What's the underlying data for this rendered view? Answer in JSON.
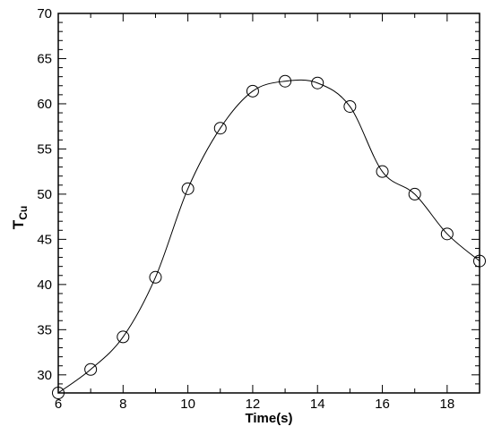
{
  "chart_data": {
    "type": "line",
    "title": "",
    "xlabel": "Time(s)",
    "ylabel_main": "T",
    "ylabel_sub": "Cu",
    "xlim": [
      6,
      19
    ],
    "ylim": [
      28,
      70
    ],
    "xticks": [
      6,
      8,
      10,
      12,
      14,
      16,
      18
    ],
    "yticks": [
      30,
      35,
      40,
      45,
      50,
      55,
      60,
      65,
      70
    ],
    "grid": false,
    "legend": "none",
    "series": [
      {
        "x": [
          6,
          7,
          8,
          9,
          10,
          11,
          12,
          13,
          14,
          15,
          16,
          17,
          18,
          19
        ],
        "y": [
          28.0,
          30.6,
          34.2,
          40.8,
          50.6,
          57.3,
          61.4,
          62.5,
          62.3,
          59.7,
          52.5,
          50.0,
          45.6,
          42.6
        ],
        "marker": "open-circle",
        "color": "#000000"
      }
    ]
  }
}
